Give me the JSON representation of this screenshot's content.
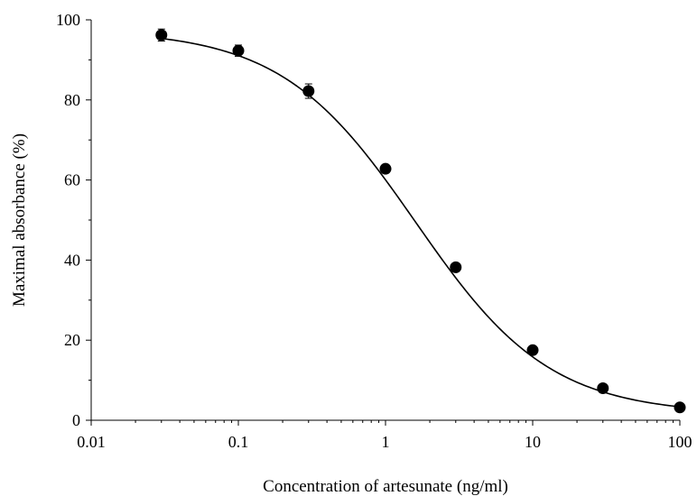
{
  "chart_data": {
    "type": "scatter",
    "title": "",
    "xlabel": "Concentration of artesunate (ng/ml)",
    "ylabel": "Maximal absorbance (%)",
    "x_scale": "log",
    "xlim": [
      0.01,
      100
    ],
    "ylim": [
      0,
      100
    ],
    "x_ticks": [
      0.01,
      0.1,
      1,
      10,
      100
    ],
    "x_tick_labels": [
      "0.01",
      "0.1",
      "1",
      "10",
      "100"
    ],
    "y_ticks": [
      0,
      20,
      40,
      60,
      80,
      100
    ],
    "y_tick_labels": [
      "0",
      "20",
      "40",
      "60",
      "80",
      "100"
    ],
    "grid": false,
    "legend": "none",
    "series": [
      {
        "points": [
          {
            "x": 0.03,
            "y": 96.2,
            "err": 1.5
          },
          {
            "x": 0.1,
            "y": 92.3,
            "err": 1.4
          },
          {
            "x": 0.3,
            "y": 82.2,
            "err": 1.8
          },
          {
            "x": 1,
            "y": 62.8,
            "err": 0.8
          },
          {
            "x": 3,
            "y": 38.2,
            "err": 0.6
          },
          {
            "x": 10,
            "y": 17.5,
            "err": 0.5
          },
          {
            "x": 30,
            "y": 8.0,
            "err": 0.4
          },
          {
            "x": 100,
            "y": 3.2,
            "err": 0.3
          }
        ],
        "fit": {
          "model": "four-parameter logistic",
          "top": 97.5,
          "bottom": 1.5,
          "ic50": 1.6,
          "hill": 0.95
        },
        "color": "#000000"
      }
    ]
  }
}
